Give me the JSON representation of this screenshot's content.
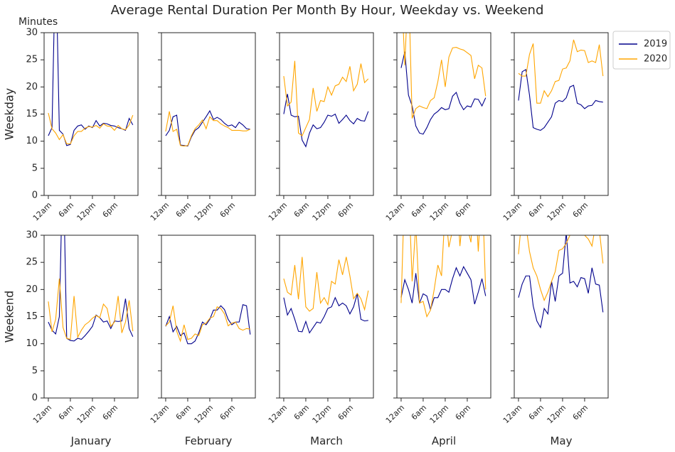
{
  "chart_data": {
    "type": "line",
    "title": "Average Rental Duration Per Month By Hour, Weekday vs. Weekend",
    "ylabel": "Minutes",
    "rows": [
      "Weekday",
      "Weekend"
    ],
    "columns": [
      "January",
      "February",
      "March",
      "April",
      "May"
    ],
    "x": [
      0,
      1,
      2,
      3,
      4,
      5,
      6,
      7,
      8,
      9,
      10,
      11,
      12,
      13,
      14,
      15,
      16,
      17,
      18,
      19,
      20,
      21,
      22,
      23
    ],
    "xlim": [
      -1.15,
      24.4
    ],
    "xticks": [
      {
        "value": 0,
        "label": "12am"
      },
      {
        "value": 6,
        "label": "6am"
      },
      {
        "value": 12,
        "label": "12pm"
      },
      {
        "value": 18,
        "label": "6pm"
      }
    ],
    "ylim": [
      0,
      30
    ],
    "yticks": [
      0,
      5,
      10,
      15,
      20,
      25,
      30
    ],
    "legend": "upper right outside",
    "panels": [
      {
        "series": [
          {
            "name": "2019",
            "color": "#00008b",
            "values": [
              11,
              12.5,
              45,
              12,
              11.3,
              9.2,
              9.4,
              12,
              12.8,
              13,
              12.2,
              12.8,
              12.5,
              13.8,
              12.8,
              13.3,
              13.2,
              12.9,
              12.8,
              12.5,
              12.3,
              12,
              14.2,
              13
            ]
          },
          {
            "name": "2020",
            "color": "#ffa500",
            "values": [
              15.2,
              12.3,
              11.5,
              10.3,
              11.2,
              9.5,
              9.5,
              11,
              11.8,
              11.8,
              12.4,
              12.7,
              12.6,
              12.9,
              12.4,
              13.2,
              12.8,
              12.7,
              12,
              12.9,
              12.3,
              12.1,
              13,
              14.8
            ]
          }
        ]
      },
      {
        "series": [
          {
            "name": "2019",
            "color": "#00008b",
            "values": [
              11,
              12,
              14.5,
              14.8,
              9.3,
              9.2,
              9.1,
              10.8,
              12,
              12.5,
              13.5,
              14.5,
              15.6,
              14,
              14.4,
              14,
              13.3,
              12.8,
              13,
              12.5,
              13.5,
              13,
              12.3,
              12.2
            ]
          },
          {
            "name": "2020",
            "color": "#ffa500",
            "values": [
              11.8,
              15.5,
              11.8,
              12.2,
              9.2,
              9.1,
              9.2,
              11,
              12.3,
              13,
              13.9,
              12.3,
              14.5,
              13.8,
              13.8,
              13.2,
              12.8,
              12.5,
              12,
              12,
              12,
              11.9,
              11.9,
              12.2
            ]
          }
        ]
      },
      {
        "series": [
          {
            "name": "2019",
            "color": "#00008b",
            "values": [
              15,
              18.7,
              14.8,
              14.5,
              14.6,
              10.2,
              9,
              11.5,
              13,
              12.3,
              12.5,
              13.5,
              14.8,
              14.6,
              15,
              13.3,
              14,
              14.8,
              13.8,
              13.2,
              14.2,
              13.8,
              13.7,
              15.5
            ]
          },
          {
            "name": "2020",
            "color": "#ffa500",
            "values": [
              22,
              16.5,
              17.2,
              24.8,
              11.5,
              11,
              12.5,
              14,
              19.8,
              15.5,
              17.5,
              17.3,
              20,
              18.5,
              20.2,
              20.5,
              21.8,
              21,
              23.8,
              19.3,
              20.5,
              24.3,
              20.8,
              21.5
            ]
          }
        ]
      },
      {
        "series": [
          {
            "name": "2019",
            "color": "#00008b",
            "values": [
              23.5,
              26.5,
              18.5,
              16.5,
              12.8,
              11.5,
              11.3,
              12.5,
              14,
              15,
              15.5,
              16.2,
              15.8,
              16,
              18.3,
              19,
              17,
              15.8,
              16.5,
              16.3,
              17.8,
              17.7,
              16.5,
              18
            ]
          },
          {
            "name": "2020",
            "color": "#ffa500",
            "values": [
              40,
              24,
              40,
              14.2,
              16,
              16.5,
              16.2,
              16,
              17.5,
              18,
              21,
              25,
              20,
              25.5,
              27.2,
              27.3,
              27,
              26.8,
              26.3,
              25.8,
              21.5,
              24,
              23.5,
              18.3
            ]
          }
        ]
      },
      {
        "series": [
          {
            "name": "2019",
            "color": "#00008b",
            "values": [
              17.5,
              22.8,
              23.2,
              18.5,
              12.5,
              12.2,
              12,
              12.5,
              13.5,
              14.5,
              17,
              17.5,
              17.3,
              18,
              20,
              20.3,
              17,
              16.7,
              16,
              16.5,
              16.6,
              17.5,
              17.3,
              17.2
            ]
          },
          {
            "name": "2020",
            "color": "#ffa500",
            "values": [
              22.5,
              22,
              22,
              26,
              28,
              17,
              17,
              19.3,
              18.2,
              19.3,
              21,
              21.2,
              23.3,
              23.5,
              24.8,
              28.7,
              26.5,
              26.8,
              26.7,
              24.5,
              24.8,
              24.5,
              27.8,
              22
            ]
          }
        ]
      },
      {
        "series": [
          {
            "name": "2019",
            "color": "#00008b",
            "values": [
              14,
              12.5,
              11.8,
              15,
              45,
              11,
              10.6,
              10.5,
              11,
              10.8,
              11.5,
              12.3,
              13.2,
              15.3,
              14.8,
              14,
              14.2,
              12.8,
              14.2,
              14.1,
              14.2,
              18.3,
              12.8,
              11.3
            ]
          },
          {
            "name": "2020",
            "color": "#ffa500",
            "values": [
              17.8,
              12.2,
              14.5,
              22,
              13,
              11,
              10.8,
              18.8,
              11.2,
              12.5,
              13.5,
              14,
              14.7,
              15.2,
              14.8,
              17.3,
              16.5,
              13.2,
              14,
              18.8,
              12,
              14,
              18,
              12.3
            ]
          }
        ]
      },
      {
        "series": [
          {
            "name": "2019",
            "color": "#00008b",
            "values": [
              13.2,
              15,
              12.2,
              13.2,
              11.5,
              12,
              10,
              10,
              10.5,
              12,
              14,
              13.5,
              14.5,
              16.2,
              16.2,
              17,
              16.3,
              14.5,
              13.5,
              14,
              14,
              17.2,
              17,
              11.7
            ]
          },
          {
            "name": "2020",
            "color": "#ffa500",
            "values": [
              13.3,
              14,
              17,
              12.3,
              10.5,
              13.5,
              10.8,
              11,
              11.8,
              11.5,
              13.5,
              13.8,
              14.7,
              15,
              16.8,
              16.5,
              15.5,
              13.3,
              13.8,
              14,
              12.8,
              12.5,
              12.8,
              12.7
            ]
          }
        ]
      },
      {
        "series": [
          {
            "name": "2019",
            "color": "#00008b",
            "values": [
              18.5,
              15.3,
              16.5,
              14.5,
              12.3,
              12.2,
              14.1,
              12,
              13,
              14,
              13.8,
              15,
              16.5,
              16.8,
              18.5,
              17,
              17.5,
              17,
              15.5,
              16.8,
              19.2,
              14.5,
              14.2,
              14.3
            ]
          },
          {
            "name": "2020",
            "color": "#ffa500",
            "values": [
              22,
              19.5,
              19,
              24.5,
              18.2,
              26,
              16.8,
              16,
              16.5,
              23.2,
              17.5,
              18.5,
              17.2,
              21.5,
              21,
              25.5,
              22.7,
              26,
              22.5,
              18.3,
              19.3,
              18.3,
              16.3,
              19.8
            ]
          }
        ]
      },
      {
        "series": [
          {
            "name": "2019",
            "color": "#00008b",
            "values": [
              18.5,
              21.8,
              20,
              17.5,
              23,
              17.5,
              19.2,
              18.8,
              16.3,
              18.5,
              18.5,
              20,
              20,
              19.5,
              22,
              24,
              22.5,
              24.2,
              23,
              21.8,
              17.3,
              19.5,
              22,
              18.8
            ]
          },
          {
            "name": "2020",
            "color": "#ffa500",
            "values": [
              17.5,
              40,
              40,
              21.5,
              32,
              17.5,
              17.8,
              15,
              16.2,
              20,
              24.5,
              22.5,
              35,
              27.8,
              31,
              40,
              28,
              35,
              31.5,
              28.7,
              40,
              27,
              40,
              20
            ]
          }
        ]
      },
      {
        "series": [
          {
            "name": "2019",
            "color": "#00008b",
            "values": [
              18.5,
              21,
              22.5,
              22.5,
              17,
              14.2,
              13,
              16.5,
              15.5,
              21.5,
              17.8,
              22.5,
              23,
              30.5,
              21.2,
              21.5,
              20.5,
              22.2,
              22,
              19.3,
              24,
              21,
              20.8,
              15.8
            ]
          },
          {
            "name": "2020",
            "color": "#ffa500",
            "values": [
              26.5,
              34,
              32,
              27,
              24,
              22.5,
              20,
              18,
              19.5,
              21.5,
              23.3,
              27.2,
              27.5,
              28.5,
              30,
              30,
              31,
              30.2,
              30,
              29.3,
              28,
              32,
              31,
              24.8
            ]
          }
        ]
      }
    ]
  }
}
